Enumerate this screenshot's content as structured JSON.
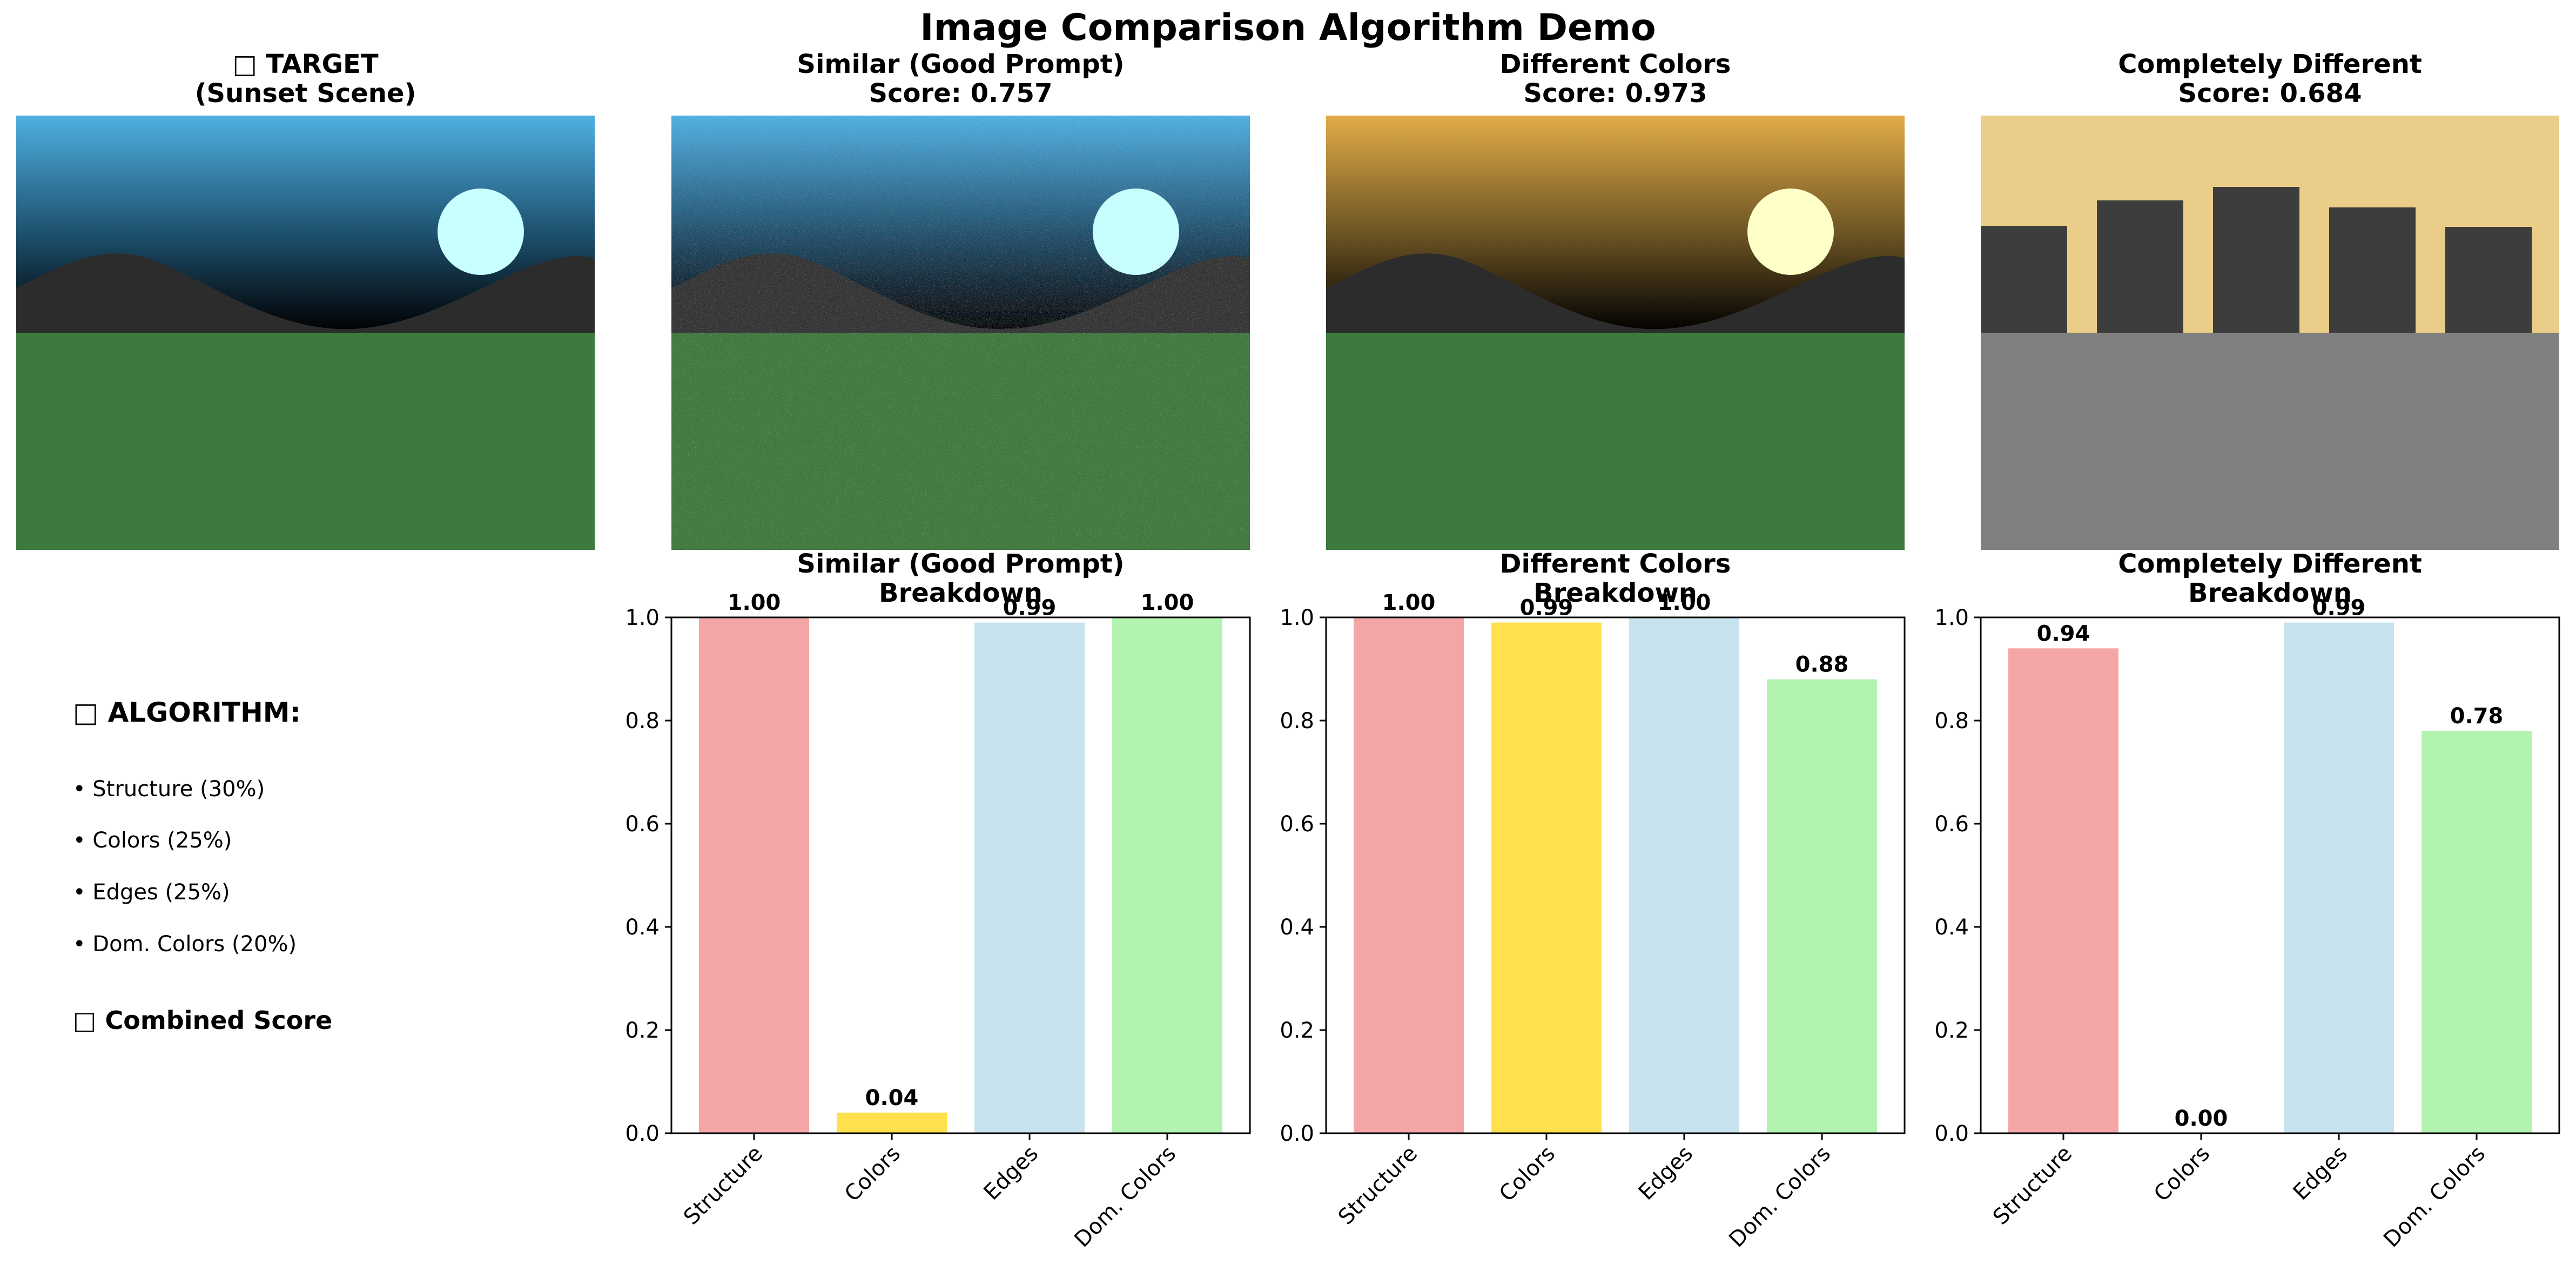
{
  "figure": {
    "title": "Image Comparison Algorithm Demo"
  },
  "images": [
    {
      "title_line1": "□ TARGET",
      "title_line2": "(Sunset Scene)"
    },
    {
      "title_line1": "Similar (Good Prompt)",
      "title_line2": "Score: 0.757"
    },
    {
      "title_line1": "Different Colors",
      "title_line2": "Score: 0.973"
    },
    {
      "title_line1": "Completely Different",
      "title_line2": "Score: 0.684"
    }
  ],
  "algorithm": {
    "heading": "□ ALGORITHM:",
    "items": [
      "• Structure (30%)",
      "• Colors (25%)",
      "• Edges (25%)",
      "• Dom. Colors (20%)"
    ],
    "footer": "□ Combined Score"
  },
  "colors": {
    "structure": "#f4a6a6",
    "colors": "#ffe04d",
    "edges": "#c6e3ee",
    "dom_colors": "#b2f3b0"
  },
  "chart_data": [
    {
      "type": "bar",
      "title": "Similar (Good Prompt)\nBreakdown",
      "categories": [
        "Structure",
        "Colors",
        "Edges",
        "Dom. Colors"
      ],
      "values": [
        1.0,
        0.04,
        0.99,
        1.0
      ],
      "value_labels": [
        "1.00",
        "0.04",
        "0.99",
        "1.00"
      ],
      "ylim": [
        0,
        1.0
      ],
      "yticks": [
        "0.0",
        "0.2",
        "0.4",
        "0.6",
        "0.8",
        "1.0"
      ]
    },
    {
      "type": "bar",
      "title": "Different Colors\nBreakdown",
      "categories": [
        "Structure",
        "Colors",
        "Edges",
        "Dom. Colors"
      ],
      "values": [
        1.0,
        0.99,
        1.0,
        0.88
      ],
      "value_labels": [
        "1.00",
        "0.99",
        "1.00",
        "0.88"
      ],
      "ylim": [
        0,
        1.0
      ],
      "yticks": [
        "0.0",
        "0.2",
        "0.4",
        "0.6",
        "0.8",
        "1.0"
      ]
    },
    {
      "type": "bar",
      "title": "Completely Different\nBreakdown",
      "categories": [
        "Structure",
        "Colors",
        "Edges",
        "Dom. Colors"
      ],
      "values": [
        0.94,
        0.0,
        0.99,
        0.78
      ],
      "value_labels": [
        "0.94",
        "0.00",
        "0.99",
        "0.78"
      ],
      "ylim": [
        0,
        1.0
      ],
      "yticks": [
        "0.0",
        "0.2",
        "0.4",
        "0.6",
        "0.8",
        "1.0"
      ]
    }
  ]
}
